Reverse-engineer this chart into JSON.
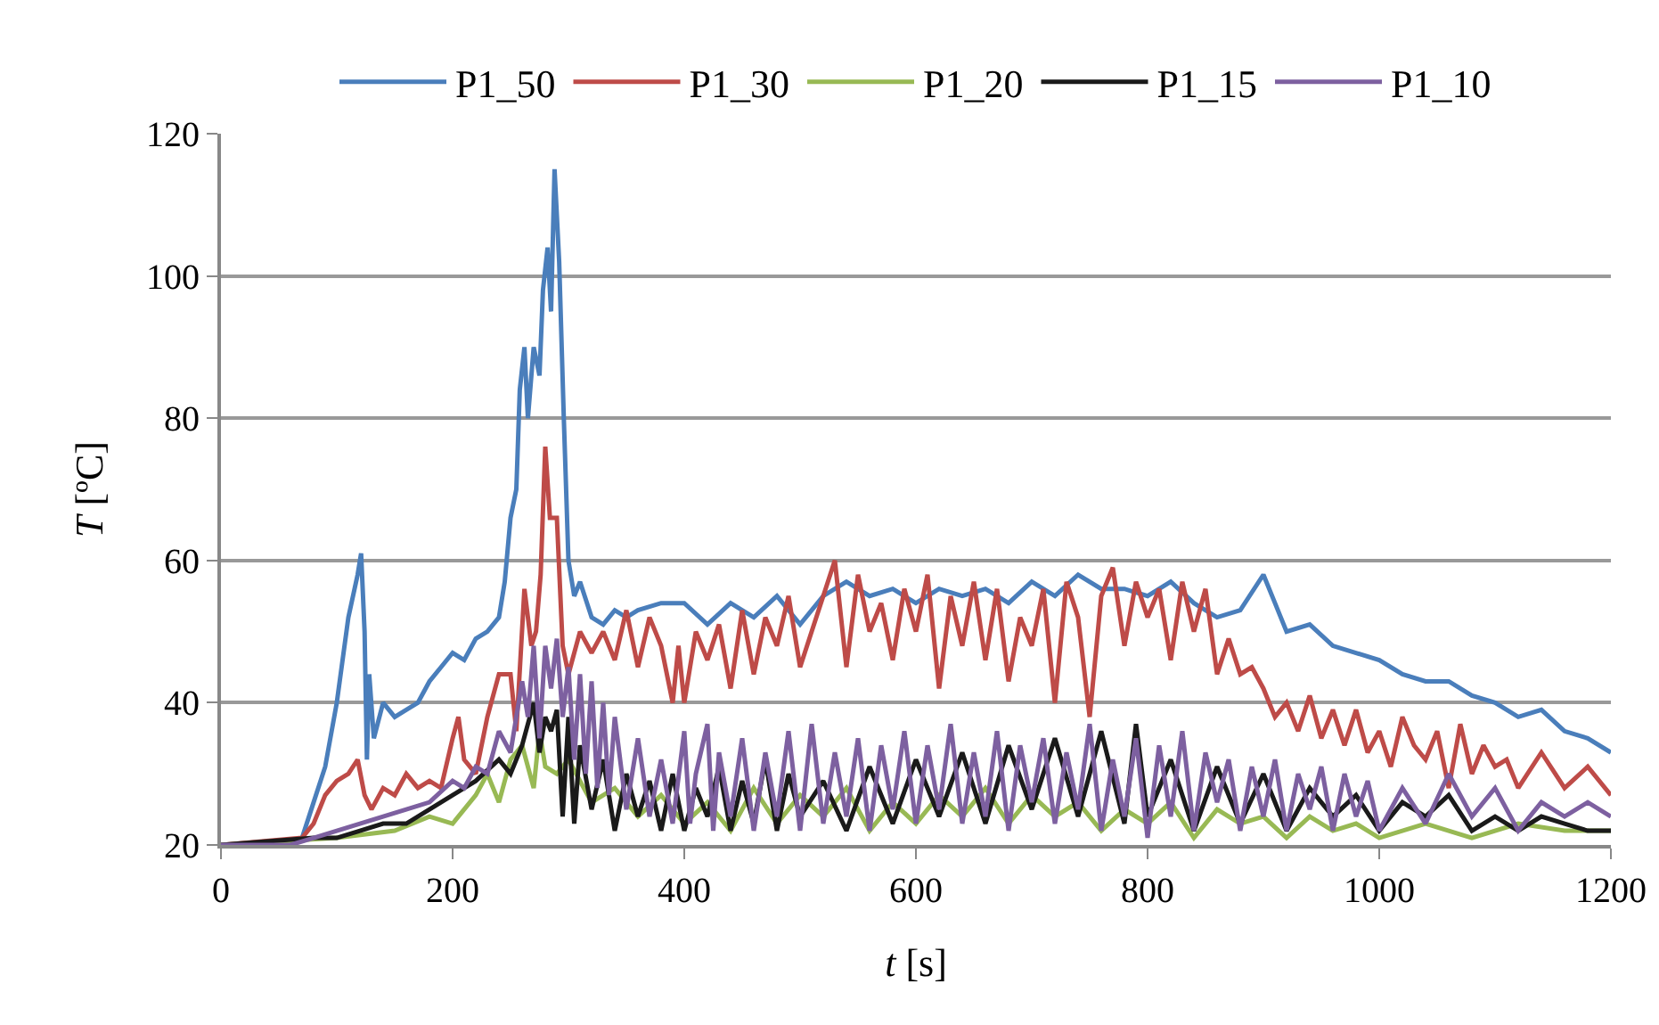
{
  "chart_data": {
    "type": "line",
    "xlabel": "t [s]",
    "ylabel": "T [ºC]",
    "xlim": [
      0,
      1200
    ],
    "xticks": [
      0,
      200,
      400,
      600,
      800,
      1000,
      1200
    ],
    "ylim": [
      20,
      120
    ],
    "yticks": [
      20,
      40,
      60,
      80,
      100,
      120
    ],
    "grid": "y",
    "legend": "top",
    "marker": "none",
    "line_style": "solid",
    "series": [
      {
        "name": "P1_50",
        "color": "#4a7ebb",
        "x": [
          0,
          60,
          70,
          80,
          90,
          100,
          110,
          118,
          121,
          124,
          126,
          128,
          132,
          140,
          150,
          160,
          170,
          180,
          190,
          200,
          210,
          220,
          230,
          240,
          245,
          250,
          255,
          258,
          262,
          265,
          270,
          275,
          278,
          282,
          285,
          288,
          292,
          296,
          300,
          305,
          310,
          320,
          330,
          340,
          350,
          360,
          380,
          400,
          420,
          440,
          460,
          480,
          500,
          520,
          540,
          560,
          580,
          600,
          620,
          640,
          660,
          680,
          700,
          720,
          740,
          760,
          780,
          800,
          820,
          840,
          860,
          880,
          900,
          910,
          920,
          940,
          960,
          980,
          1000,
          1020,
          1040,
          1060,
          1080,
          1100,
          1120,
          1140,
          1160,
          1180,
          1200
        ],
        "values": [
          20,
          20,
          21,
          26,
          31,
          40,
          52,
          58,
          61,
          50,
          32,
          44,
          35,
          40,
          38,
          39,
          40,
          43,
          45,
          47,
          46,
          49,
          50,
          52,
          57,
          66,
          70,
          84,
          90,
          80,
          90,
          86,
          98,
          104,
          95,
          115,
          102,
          80,
          60,
          55,
          57,
          52,
          51,
          53,
          52,
          53,
          54,
          54,
          51,
          54,
          52,
          55,
          51,
          55,
          57,
          55,
          56,
          54,
          56,
          55,
          56,
          54,
          57,
          55,
          58,
          56,
          56,
          55,
          57,
          54,
          52,
          53,
          58,
          54,
          50,
          51,
          48,
          47,
          46,
          44,
          43,
          43,
          41,
          40,
          38,
          39,
          36,
          35,
          33
        ]
      },
      {
        "name": "P1_30",
        "color": "#be4b48",
        "x": [
          0,
          70,
          80,
          90,
          100,
          110,
          118,
          124,
          130,
          140,
          150,
          160,
          170,
          180,
          190,
          200,
          205,
          210,
          220,
          230,
          240,
          250,
          255,
          262,
          268,
          272,
          276,
          280,
          284,
          290,
          295,
          300,
          310,
          320,
          330,
          340,
          350,
          360,
          370,
          380,
          390,
          395,
          400,
          410,
          420,
          430,
          440,
          450,
          460,
          470,
          480,
          490,
          500,
          510,
          520,
          530,
          540,
          550,
          560,
          570,
          580,
          590,
          600,
          610,
          620,
          630,
          640,
          650,
          660,
          670,
          680,
          690,
          700,
          710,
          720,
          730,
          740,
          750,
          760,
          770,
          780,
          790,
          800,
          810,
          820,
          830,
          840,
          850,
          860,
          870,
          880,
          890,
          900,
          910,
          920,
          930,
          940,
          950,
          960,
          970,
          980,
          990,
          1000,
          1010,
          1020,
          1030,
          1040,
          1050,
          1060,
          1070,
          1080,
          1090,
          1100,
          1110,
          1120,
          1140,
          1160,
          1180,
          1200
        ],
        "values": [
          20,
          21,
          23,
          27,
          29,
          30,
          32,
          27,
          25,
          28,
          27,
          30,
          28,
          29,
          28,
          35,
          38,
          32,
          30,
          38,
          44,
          44,
          36,
          56,
          48,
          50,
          58,
          76,
          66,
          66,
          48,
          44,
          50,
          47,
          50,
          46,
          53,
          45,
          52,
          48,
          40,
          48,
          40,
          50,
          46,
          51,
          42,
          53,
          44,
          52,
          48,
          55,
          45,
          50,
          55,
          60,
          45,
          58,
          50,
          54,
          46,
          56,
          50,
          58,
          42,
          55,
          48,
          57,
          46,
          56,
          43,
          52,
          48,
          56,
          40,
          57,
          52,
          38,
          55,
          59,
          48,
          57,
          52,
          56,
          46,
          57,
          50,
          56,
          44,
          49,
          44,
          45,
          42,
          38,
          40,
          36,
          41,
          35,
          39,
          34,
          39,
          33,
          36,
          31,
          38,
          34,
          32,
          36,
          28,
          37,
          30,
          34,
          31,
          32,
          28,
          33,
          28,
          31,
          27
        ]
      },
      {
        "name": "P1_20",
        "color": "#98b954",
        "x": [
          0,
          100,
          150,
          180,
          200,
          220,
          230,
          240,
          250,
          260,
          270,
          275,
          280,
          290,
          300,
          320,
          340,
          360,
          380,
          400,
          420,
          440,
          460,
          480,
          500,
          520,
          540,
          560,
          580,
          600,
          620,
          640,
          660,
          680,
          700,
          720,
          740,
          760,
          780,
          800,
          820,
          840,
          860,
          880,
          900,
          920,
          940,
          960,
          980,
          1000,
          1040,
          1080,
          1120,
          1160,
          1200
        ],
        "values": [
          20,
          21,
          22,
          24,
          23,
          27,
          30,
          26,
          32,
          34,
          28,
          36,
          31,
          30,
          32,
          26,
          28,
          24,
          27,
          23,
          26,
          22,
          28,
          23,
          27,
          24,
          28,
          22,
          26,
          23,
          27,
          24,
          28,
          23,
          27,
          24,
          26,
          22,
          25,
          23,
          26,
          21,
          25,
          23,
          24,
          21,
          24,
          22,
          23,
          21,
          23,
          21,
          23,
          22,
          22
        ]
      },
      {
        "name": "P1_15",
        "color": "#1a1a1a",
        "x": [
          0,
          80,
          100,
          120,
          140,
          160,
          180,
          200,
          220,
          240,
          250,
          260,
          270,
          275,
          280,
          285,
          290,
          295,
          300,
          305,
          310,
          320,
          330,
          340,
          350,
          360,
          370,
          380,
          390,
          400,
          410,
          420,
          430,
          440,
          450,
          460,
          470,
          480,
          490,
          500,
          520,
          540,
          560,
          580,
          600,
          620,
          640,
          660,
          680,
          700,
          720,
          740,
          760,
          780,
          790,
          800,
          820,
          840,
          860,
          880,
          900,
          920,
          940,
          960,
          980,
          1000,
          1020,
          1040,
          1060,
          1080,
          1100,
          1120,
          1140,
          1160,
          1180,
          1200
        ],
        "values": [
          20,
          21,
          21,
          22,
          23,
          23,
          25,
          27,
          29,
          32,
          30,
          34,
          40,
          33,
          38,
          36,
          39,
          24,
          38,
          23,
          34,
          25,
          32,
          22,
          30,
          24,
          29,
          22,
          30,
          22,
          28,
          24,
          31,
          22,
          29,
          23,
          32,
          22,
          30,
          24,
          29,
          22,
          31,
          23,
          32,
          24,
          33,
          23,
          34,
          25,
          35,
          24,
          36,
          23,
          37,
          24,
          32,
          22,
          31,
          23,
          30,
          22,
          28,
          24,
          27,
          22,
          26,
          24,
          27,
          22,
          24,
          22,
          24,
          23,
          22,
          22
        ]
      },
      {
        "name": "P1_10",
        "color": "#7d60a0",
        "x": [
          0,
          60,
          80,
          100,
          120,
          140,
          160,
          180,
          200,
          210,
          220,
          230,
          240,
          250,
          260,
          265,
          270,
          275,
          280,
          285,
          290,
          295,
          300,
          305,
          310,
          315,
          320,
          325,
          330,
          335,
          340,
          350,
          360,
          370,
          380,
          390,
          400,
          405,
          410,
          420,
          425,
          430,
          440,
          450,
          460,
          470,
          480,
          490,
          500,
          510,
          520,
          530,
          540,
          550,
          560,
          570,
          580,
          590,
          600,
          610,
          620,
          630,
          640,
          650,
          660,
          670,
          680,
          690,
          700,
          710,
          720,
          730,
          740,
          750,
          760,
          770,
          780,
          790,
          800,
          810,
          820,
          830,
          840,
          850,
          860,
          870,
          880,
          890,
          900,
          910,
          920,
          930,
          940,
          950,
          960,
          970,
          980,
          990,
          1000,
          1020,
          1040,
          1060,
          1080,
          1100,
          1120,
          1140,
          1160,
          1180,
          1200
        ],
        "values": [
          20,
          20,
          21,
          22,
          23,
          24,
          25,
          26,
          29,
          28,
          31,
          30,
          36,
          33,
          43,
          38,
          48,
          35,
          48,
          42,
          49,
          38,
          45,
          32,
          44,
          30,
          43,
          28,
          40,
          27,
          38,
          25,
          35,
          24,
          32,
          23,
          36,
          23,
          30,
          37,
          22,
          33,
          24,
          35,
          22,
          33,
          24,
          36,
          22,
          37,
          23,
          33,
          24,
          35,
          22,
          34,
          25,
          36,
          23,
          34,
          25,
          37,
          23,
          33,
          24,
          36,
          22,
          34,
          26,
          35,
          23,
          33,
          25,
          37,
          22,
          32,
          24,
          35,
          21,
          34,
          24,
          36,
          22,
          33,
          26,
          32,
          22,
          31,
          24,
          32,
          22,
          30,
          25,
          31,
          22,
          30,
          24,
          29,
          22,
          28,
          23,
          30,
          24,
          28,
          22,
          26,
          24,
          26,
          24
        ]
      }
    ]
  }
}
